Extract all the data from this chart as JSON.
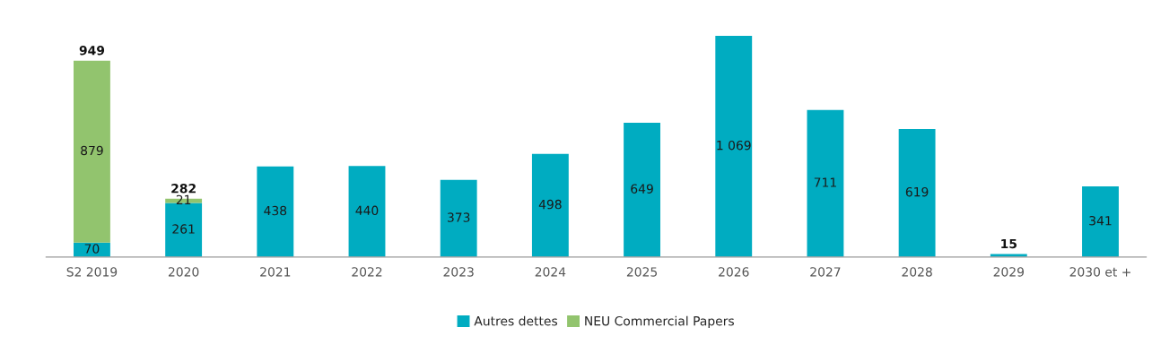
{
  "chart_data": {
    "type": "bar",
    "stacked": true,
    "categories": [
      "S2 2019",
      "2020",
      "2021",
      "2022",
      "2023",
      "2024",
      "2025",
      "2026",
      "2027",
      "2028",
      "2029",
      "2030 et +"
    ],
    "series": [
      {
        "name": "Autres dettes",
        "color": "#00acc1",
        "values": [
          70,
          261,
          438,
          440,
          373,
          498,
          649,
          1069,
          711,
          619,
          15,
          341
        ],
        "value_labels": [
          "70",
          "261",
          "438",
          "440",
          "373",
          "498",
          "649",
          "1 069",
          "711",
          "619",
          null,
          "341"
        ]
      },
      {
        "name": "NEU Commercial Papers",
        "color": "#92c46e",
        "values": [
          879,
          21,
          null,
          null,
          null,
          null,
          null,
          null,
          null,
          null,
          null,
          null
        ],
        "value_labels": [
          "879",
          "21",
          null,
          null,
          null,
          null,
          null,
          null,
          null,
          null,
          null,
          null
        ]
      }
    ],
    "totals": [
      "949",
      "282",
      null,
      null,
      null,
      null,
      null,
      null,
      null,
      null,
      "15",
      null
    ],
    "legend": "bottom",
    "grid": false
  }
}
